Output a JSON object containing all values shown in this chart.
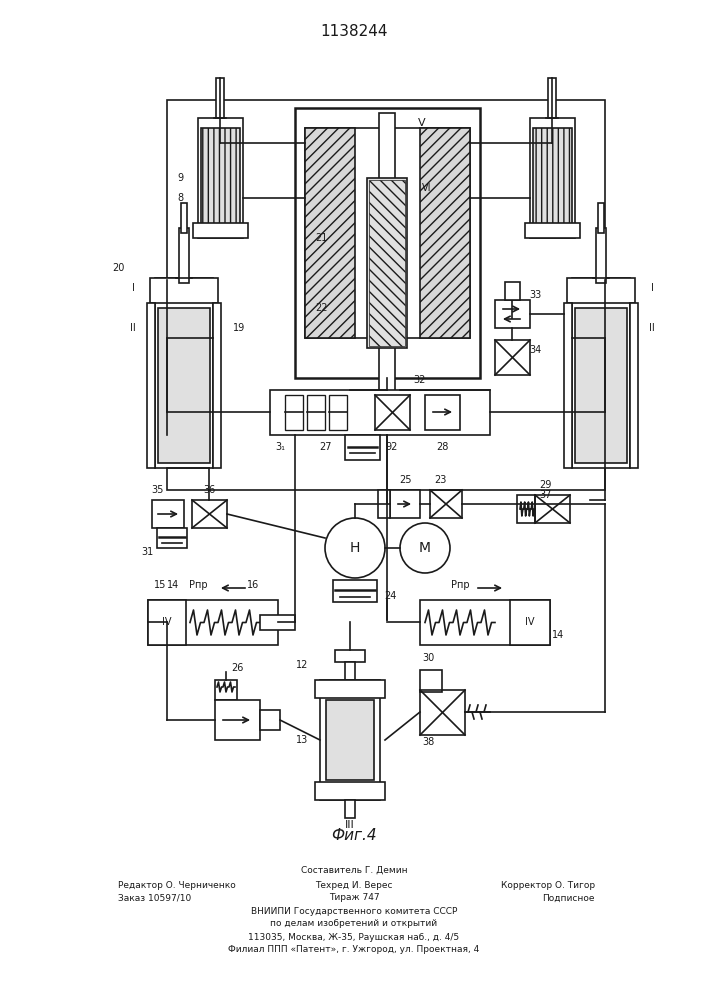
{
  "title": "1138244",
  "fig_label": "Фиг.4",
  "footer_line1": "Составитель Г. Демин",
  "footer_line2_left": "Редактор О. Черниченко",
  "footer_line2_mid": "Техред И. Верес",
  "footer_line2_right": "Корректор О. Тигор",
  "footer_line3_left": "Заказ 10597/10",
  "footer_line3_mid": "Тираж 747",
  "footer_line3_right": "Подписное",
  "footer_line4": "ВНИИПИ Государственного комитета СССР",
  "footer_line5": "по делам изобретений и открытий",
  "footer_line6": "113035, Москва, Ж-35, Раушская наб., д. 4/5",
  "footer_line7": "Филиал ППП «Патент», г. Ужгород, ул. Проектная, 4",
  "bg_color": "#ffffff",
  "line_color": "#1a1a1a"
}
